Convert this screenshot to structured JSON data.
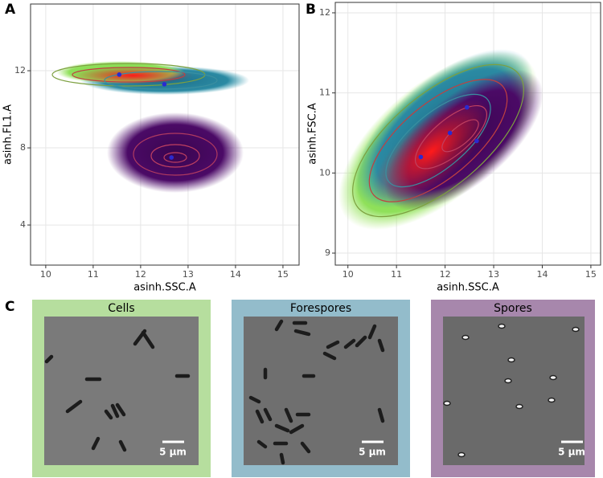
{
  "panels": [
    "A",
    "B",
    "C"
  ],
  "chart_data": [
    {
      "type": "scatter",
      "xlabel": "asinh.SSC.A",
      "ylabel": "asinh.FL1.A",
      "x": [
        11.55,
        12.5,
        12.65
      ],
      "values": [
        11.8,
        11.3,
        7.5
      ],
      "color": "#2a2ad0",
      "xlim": [
        9.68,
        15.34
      ],
      "ylim": [
        1.92,
        15.46
      ],
      "xticks": [
        10,
        11,
        12,
        13,
        14,
        15
      ],
      "yticks": [
        4,
        8,
        12
      ],
      "grid": true
    },
    {
      "type": "scatter",
      "xlabel": "asinh.SSC.A",
      "ylabel": "asinh.FSC.A",
      "x": [
        11.5,
        12.1,
        12.45,
        12.65
      ],
      "values": [
        10.2,
        10.5,
        10.82,
        10.4
      ],
      "color": "#2a2ad0",
      "xlim": [
        9.74,
        15.2
      ],
      "ylim": [
        8.85,
        12.13
      ],
      "xticks": [
        10,
        11,
        12,
        13,
        14,
        15
      ],
      "yticks": [
        9,
        10,
        11,
        12
      ],
      "grid": true
    }
  ],
  "micrographs": [
    {
      "title": "Cells",
      "scale_bar": "5 µm",
      "color": "#b6de9e"
    },
    {
      "title": "Forespores",
      "scale_bar": "5 µm",
      "color": "#93bccb"
    },
    {
      "title": "Spores",
      "scale_bar": "5 µm",
      "color": "#a787ac"
    }
  ]
}
